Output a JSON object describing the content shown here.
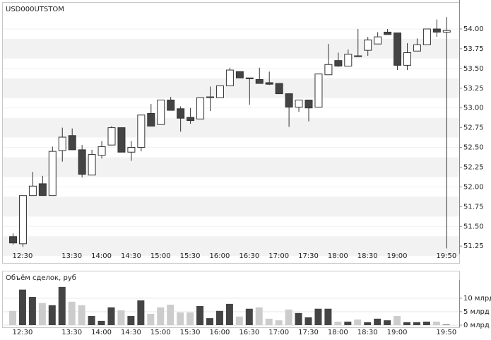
{
  "chart_data": [
    {
      "type": "candlestick",
      "title": "USD000UTSTOM",
      "categories": [
        null,
        "12:30",
        null,
        null,
        null,
        null,
        "13:30",
        null,
        null,
        "14:00",
        null,
        null,
        "14:30",
        null,
        null,
        "15:00",
        null,
        null,
        "15:30",
        null,
        null,
        "16:00",
        null,
        null,
        "16:30",
        null,
        null,
        "17:00",
        null,
        null,
        "17:30",
        null,
        null,
        "18:00",
        null,
        null,
        "18:30",
        null,
        null,
        "19:00",
        null,
        null,
        null,
        null,
        "19:50"
      ],
      "open": [
        51.37,
        51.28,
        51.89,
        52.04,
        51.89,
        52.46,
        52.65,
        52.47,
        52.15,
        52.4,
        52.53,
        52.75,
        52.44,
        52.5,
        52.93,
        52.79,
        53.1,
        52.99,
        52.88,
        52.86,
        53.13,
        53.13,
        53.28,
        53.46,
        53.38,
        53.36,
        53.32,
        53.31,
        53.18,
        53.01,
        53.1,
        53.01,
        53.42,
        53.6,
        53.53,
        53.66,
        53.73,
        53.81,
        53.96,
        53.95,
        53.54,
        53.72,
        53.8,
        54.0,
        53.96
      ],
      "high": [
        51.41,
        51.89,
        52.19,
        52.14,
        52.51,
        52.75,
        52.74,
        52.53,
        52.47,
        52.58,
        52.77,
        52.75,
        52.58,
        52.91,
        53.05,
        53.1,
        53.14,
        53.02,
        53.0,
        53.13,
        53.27,
        53.28,
        53.51,
        53.46,
        53.38,
        53.51,
        53.46,
        53.31,
        53.18,
        53.1,
        53.1,
        53.43,
        53.81,
        53.7,
        53.74,
        54.0,
        53.9,
        53.96,
        54.0,
        53.95,
        53.82,
        53.88,
        54.0,
        54.12,
        54.15
      ],
      "low": [
        51.27,
        51.24,
        51.89,
        51.89,
        51.89,
        52.32,
        52.47,
        52.12,
        52.15,
        52.36,
        52.53,
        52.44,
        52.33,
        52.45,
        52.77,
        52.79,
        52.97,
        52.7,
        52.8,
        52.86,
        52.96,
        53.13,
        53.28,
        53.38,
        53.04,
        53.31,
        53.29,
        53.18,
        52.76,
        52.95,
        52.83,
        53.01,
        53.42,
        53.52,
        53.53,
        53.65,
        53.66,
        53.81,
        53.93,
        53.48,
        53.48,
        53.72,
        53.8,
        53.9,
        51.22
      ],
      "close": [
        51.29,
        51.89,
        52.01,
        51.89,
        52.45,
        52.63,
        52.47,
        52.16,
        52.41,
        52.51,
        52.75,
        52.44,
        52.5,
        52.91,
        52.77,
        53.1,
        52.97,
        52.87,
        52.84,
        53.13,
        53.14,
        53.28,
        53.48,
        53.38,
        53.37,
        53.31,
        53.3,
        53.18,
        53.01,
        53.1,
        53.0,
        53.43,
        53.55,
        53.53,
        53.68,
        53.65,
        53.86,
        53.9,
        53.93,
        53.54,
        53.7,
        53.8,
        54.0,
        53.96,
        53.98
      ],
      "up_color": "#ffffff",
      "down_color": "#444444",
      "edge_color": "#333333",
      "ylim": [
        51.18,
        54.34
      ],
      "yticks": [
        {
          "value": 51.25,
          "label": "51.25"
        },
        {
          "value": 51.5,
          "label": "51.50"
        },
        {
          "value": 51.75,
          "label": "51.75"
        },
        {
          "value": 52,
          "label": "52.00"
        },
        {
          "value": 52.25,
          "label": "52.25"
        },
        {
          "value": 52.5,
          "label": "52.50"
        },
        {
          "value": 52.75,
          "label": "52.75"
        },
        {
          "value": 53,
          "label": "53.00"
        },
        {
          "value": 53.25,
          "label": "53.25"
        },
        {
          "value": 53.5,
          "label": "53.50"
        },
        {
          "value": 53.75,
          "label": "53.75"
        },
        {
          "value": 54,
          "label": "54.00"
        }
      ],
      "grid": true
    },
    {
      "type": "bar",
      "title": "Объём сделок, руб",
      "categories": [
        null,
        "12:30",
        null,
        null,
        null,
        null,
        "13:30",
        null,
        null,
        "14:00",
        null,
        null,
        "14:30",
        null,
        null,
        "15:00",
        null,
        null,
        "15:30",
        null,
        null,
        "16:00",
        null,
        null,
        "16:30",
        null,
        null,
        "17:00",
        null,
        null,
        "17:30",
        null,
        null,
        "18:00",
        null,
        null,
        "18:30",
        null,
        null,
        "19:00",
        null,
        null,
        null,
        null,
        "19:50"
      ],
      "values": [
        5.3,
        13.2,
        10.5,
        8.2,
        7.4,
        14.2,
        8.7,
        7.4,
        3.4,
        1.6,
        6.6,
        5.5,
        3.4,
        9.2,
        4.2,
        6.6,
        7.6,
        4.7,
        4.7,
        7.1,
        2.6,
        5.3,
        7.9,
        3.2,
        6.1,
        6.6,
        2.4,
        1.8,
        5.8,
        4.5,
        2.9,
        6.1,
        6.1,
        1.3,
        1.3,
        2.1,
        1.1,
        2.4,
        1.8,
        3.4,
        1.1,
        1.1,
        1.3,
        1.3,
        0.2
      ],
      "colors": [
        "#cccccc",
        "#444444",
        "#444444",
        "#cccccc",
        "#444444",
        "#444444",
        "#cccccc",
        "#cccccc",
        "#444444",
        "#444444",
        "#444444",
        "#cccccc",
        "#444444",
        "#444444",
        "#cccccc",
        "#cccccc",
        "#cccccc",
        "#cccccc",
        "#cccccc",
        "#444444",
        "#444444",
        "#444444",
        "#444444",
        "#cccccc",
        "#444444",
        "#cccccc",
        "#cccccc",
        "#cccccc",
        "#cccccc",
        "#444444",
        "#444444",
        "#444444",
        "#444444",
        "#cccccc",
        "#444444",
        "#cccccc",
        "#444444",
        "#444444",
        "#444444",
        "#cccccc",
        "#444444",
        "#444444",
        "#444444",
        "#cccccc",
        "#444444"
      ],
      "ylim": [
        0,
        16
      ],
      "yticks": [
        {
          "value": 0,
          "label": "0 млрд"
        },
        {
          "value": 5,
          "label": "5 млрд"
        },
        {
          "value": 10,
          "label": "10 млрд"
        }
      ],
      "grid": true
    }
  ]
}
